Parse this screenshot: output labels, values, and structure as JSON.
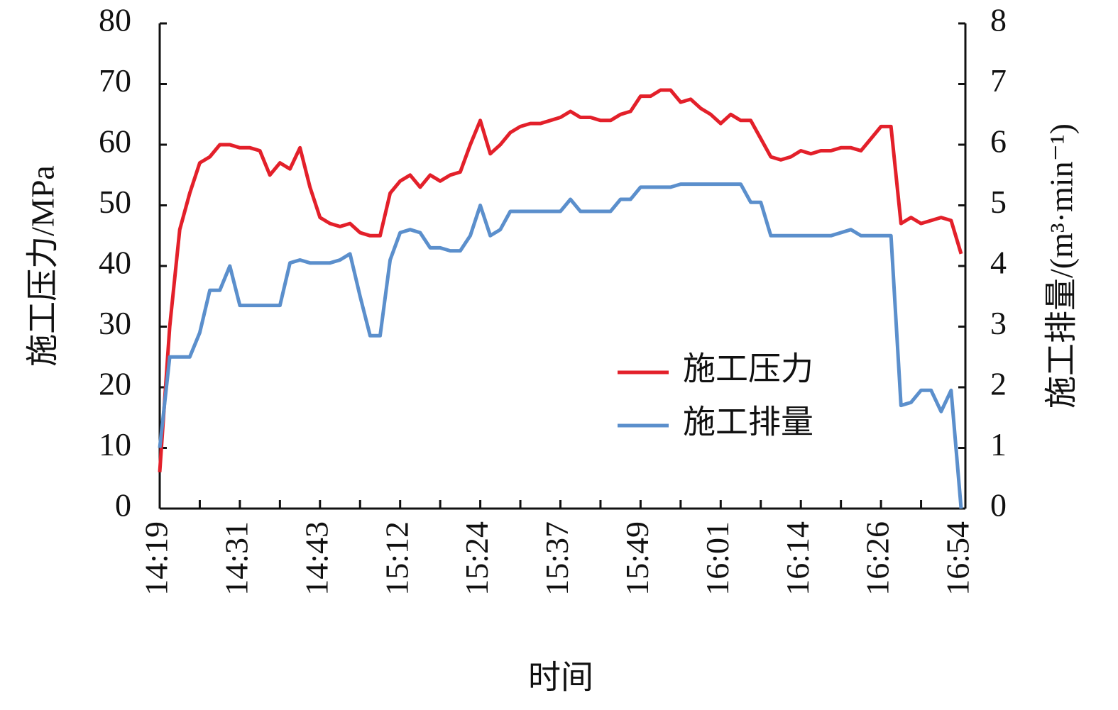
{
  "chart_data": {
    "type": "line",
    "xlabel": "时间",
    "ylabel": "施工压力/MPa",
    "y2label": "施工排量/(m³·min⁻¹)",
    "categories": [
      "14:19",
      null,
      null,
      null,
      null,
      null,
      null,
      null,
      "14:31",
      null,
      null,
      null,
      null,
      null,
      null,
      null,
      "14:43",
      null,
      null,
      null,
      null,
      null,
      null,
      null,
      "15:12",
      null,
      null,
      null,
      null,
      null,
      null,
      null,
      "15:24",
      null,
      null,
      null,
      null,
      null,
      null,
      null,
      "15:37",
      null,
      null,
      null,
      null,
      null,
      null,
      null,
      "15:49",
      null,
      null,
      null,
      null,
      null,
      null,
      null,
      "16:01",
      null,
      null,
      null,
      null,
      null,
      null,
      null,
      "16:14",
      null,
      null,
      null,
      null,
      null,
      null,
      null,
      "16:26",
      null,
      null,
      null,
      null,
      null,
      null,
      null,
      "16:54"
    ],
    "series": [
      {
        "name": "施工压力",
        "color": "#e3202a",
        "values": [
          6,
          30,
          46,
          52,
          57,
          58,
          60,
          60,
          59.5,
          59.5,
          59,
          55,
          57,
          56,
          59.5,
          53,
          48,
          47,
          46.5,
          47,
          45.5,
          45,
          45,
          52,
          54,
          55,
          53,
          55,
          54,
          55,
          55.5,
          60,
          64,
          58.5,
          60,
          62,
          63,
          63.5,
          63.5,
          64,
          64.5,
          65.5,
          64.5,
          64.5,
          64,
          64,
          65,
          65.5,
          68,
          68,
          69,
          69,
          67,
          67.5,
          66,
          65,
          63.5,
          65,
          64,
          64,
          61,
          58,
          57.5,
          58,
          59,
          58.5,
          59,
          59,
          59.5,
          59.5,
          59,
          61,
          63,
          63,
          47,
          48,
          47,
          47.5,
          48,
          47.5,
          42
        ]
      },
      {
        "name": "施工排量",
        "color": "#5b8fcc",
        "axis": "y2",
        "values": [
          1,
          2.5,
          2.5,
          2.5,
          2.9,
          3.6,
          3.6,
          4,
          3.35,
          3.35,
          3.35,
          3.35,
          3.35,
          4.05,
          4.1,
          4.05,
          4.05,
          4.05,
          4.1,
          4.2,
          3.5,
          2.85,
          2.85,
          4.1,
          4.55,
          4.6,
          4.55,
          4.3,
          4.3,
          4.25,
          4.25,
          4.5,
          5,
          4.5,
          4.6,
          4.9,
          4.9,
          4.9,
          4.9,
          4.9,
          4.9,
          5.1,
          4.9,
          4.9,
          4.9,
          4.9,
          5.1,
          5.1,
          5.3,
          5.3,
          5.3,
          5.3,
          5.35,
          5.35,
          5.35,
          5.35,
          5.35,
          5.35,
          5.35,
          5.05,
          5.05,
          4.5,
          4.5,
          4.5,
          4.5,
          4.5,
          4.5,
          4.5,
          4.55,
          4.6,
          4.5,
          4.5,
          4.5,
          4.5,
          1.7,
          1.75,
          1.95,
          1.95,
          1.6,
          1.95,
          0
        ]
      }
    ],
    "ylim": [
      0,
      80
    ],
    "yticks": [
      0,
      10,
      20,
      30,
      40,
      50,
      60,
      70,
      80
    ],
    "y2lim": [
      0,
      8
    ],
    "y2ticks": [
      0,
      1,
      2,
      3,
      4,
      5,
      6,
      7,
      8
    ],
    "legend": "lower right"
  }
}
